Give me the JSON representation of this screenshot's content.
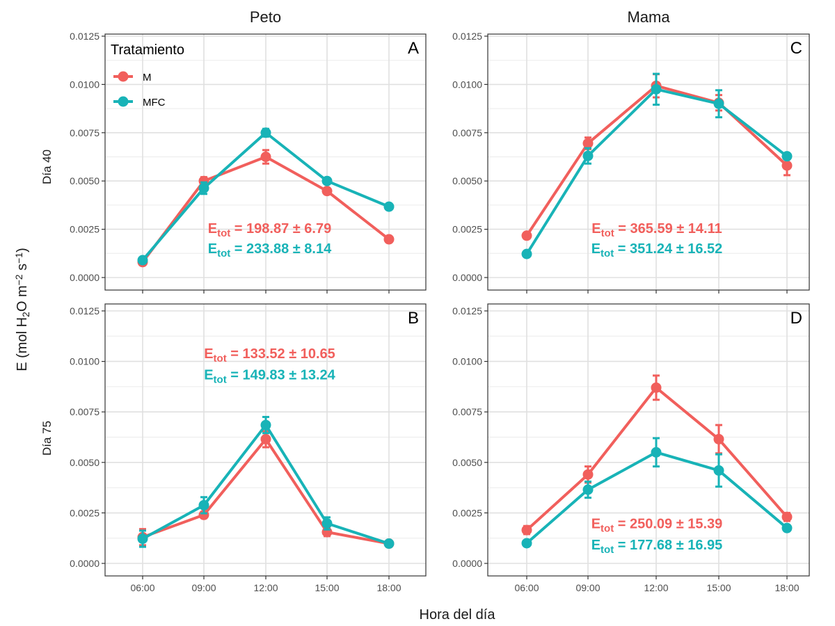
{
  "chart_data": {
    "type": "line",
    "xlabel": "Hora del día",
    "ylabel_parts": {
      "main": "E (mol H",
      "sub": "2",
      "mid": "O m",
      "sup1": "−2",
      "mid2": " s",
      "sup2": "−1",
      "end": ")"
    },
    "categories": [
      "06:00",
      "09:00",
      "12:00",
      "15:00",
      "18:00"
    ],
    "ylim": [
      0,
      0.0125
    ],
    "yticks": [
      "0.0000",
      "0.0025",
      "0.0050",
      "0.0075",
      "0.0100",
      "0.0125"
    ],
    "ytick_values": [
      0,
      0.0025,
      0.005,
      0.0075,
      0.01,
      0.0125
    ],
    "columns": [
      "Peto",
      "Mama"
    ],
    "rows": [
      "Día 40",
      "Día 75"
    ],
    "grid": true,
    "legend": {
      "title": "Tratamiento",
      "placement": "top-left inside panel A",
      "entries": [
        {
          "name": "M",
          "color": "#F15F5C"
        },
        {
          "name": "MFC",
          "color": "#18B3B7"
        }
      ]
    },
    "panels": [
      {
        "tag": "A",
        "column": "Peto",
        "row": "Día 40",
        "series": [
          {
            "name": "M",
            "values": [
              0.0008,
              0.005,
              0.00625,
              0.00448,
              0.00198
            ],
            "err": [
              0.0001,
              0.0002,
              0.00035,
              0.0001,
              0.0001
            ]
          },
          {
            "name": "MFC",
            "values": [
              0.0009,
              0.00463,
              0.0075,
              0.005,
              0.00367
            ],
            "err": [
              0.0001,
              0.0003,
              0.0002,
              0.0001,
              0.0001
            ]
          }
        ],
        "annotations": [
          {
            "series": "M",
            "label": "E",
            "sub": "tot",
            "text": " = 198.87 ± 6.79"
          },
          {
            "series": "MFC",
            "label": "E",
            "sub": "tot",
            "text": " = 233.88 ± 8.14"
          }
        ],
        "ann_y": [
          0.00255,
          0.00152
        ]
      },
      {
        "tag": "C",
        "column": "Mama",
        "row": "Día 40",
        "series": [
          {
            "name": "M",
            "values": [
              0.00217,
              0.00695,
              0.00993,
              0.00905,
              0.0058
            ],
            "err": [
              0.0001,
              0.0003,
              0.0006,
              0.0004,
              0.0005
            ]
          },
          {
            "name": "MFC",
            "values": [
              0.00122,
              0.0063,
              0.00975,
              0.009,
              0.00628
            ],
            "err": [
              0.0001,
              0.0004,
              0.0008,
              0.0007,
              0.0001
            ]
          }
        ],
        "annotations": [
          {
            "series": "M",
            "label": "E",
            "sub": "tot",
            "text": " = 365.59 ± 14.11"
          },
          {
            "series": "MFC",
            "label": "E",
            "sub": "tot",
            "text": " = 351.24 ± 16.52"
          }
        ],
        "ann_y": [
          0.00255,
          0.00152
        ]
      },
      {
        "tag": "B",
        "column": "Peto",
        "row": "Día 75",
        "series": [
          {
            "name": "M",
            "values": [
              0.0013,
              0.0024,
              0.00615,
              0.00155,
              0.00098
            ],
            "err": [
              0.0004,
              0.0001,
              0.0004,
              0.0002,
              0.0001
            ]
          },
          {
            "name": "MFC",
            "values": [
              0.00122,
              0.00288,
              0.00685,
              0.00198,
              0.00098
            ],
            "err": [
              0.0004,
              0.0004,
              0.0004,
              0.0003,
              0.0001
            ]
          }
        ],
        "annotations": [
          {
            "series": "M",
            "label": "E",
            "sub": "tot",
            "text": " = 133.52 ± 10.65"
          },
          {
            "series": "MFC",
            "label": "E",
            "sub": "tot",
            "text": " = 149.83 ± 13.24"
          }
        ],
        "ann_y": [
          0.0104,
          0.00935
        ]
      },
      {
        "tag": "D",
        "column": "Mama",
        "row": "Día 75",
        "series": [
          {
            "name": "M",
            "values": [
              0.00165,
              0.0044,
              0.0087,
              0.00615,
              0.0023
            ],
            "err": [
              0.0002,
              0.0004,
              0.0006,
              0.0007,
              0.0002
            ]
          },
          {
            "name": "MFC",
            "values": [
              0.001,
              0.00365,
              0.0055,
              0.0046,
              0.00175
            ],
            "err": [
              0.0001,
              0.0004,
              0.0007,
              0.0008,
              0.0001
            ]
          }
        ],
        "annotations": [
          {
            "series": "M",
            "label": "E",
            "sub": "tot",
            "text": " = 250.09 ± 15.39"
          },
          {
            "series": "MFC",
            "label": "E",
            "sub": "tot",
            "text": " = 177.68 ± 16.95"
          }
        ],
        "ann_y": [
          0.00198,
          0.00093
        ]
      }
    ]
  }
}
